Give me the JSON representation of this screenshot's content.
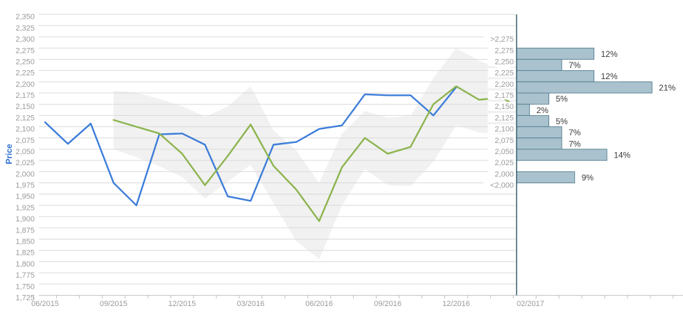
{
  "chart_data": [
    {
      "type": "line",
      "title": "",
      "ylabel": "Price",
      "ylim": [
        1725,
        2350
      ],
      "y_tick_step": 25,
      "grid": true,
      "legend": "none",
      "months": [
        "06/2015",
        "07/2015",
        "08/2015",
        "09/2015",
        "10/2015",
        "11/2015",
        "12/2015",
        "01/2016",
        "02/2016",
        "03/2016",
        "04/2016",
        "05/2016",
        "06/2016",
        "07/2016",
        "08/2016",
        "09/2016",
        "10/2016",
        "11/2016",
        "12/2016",
        "01/2017",
        "02/2017"
      ],
      "x_tick_labels": [
        "06/2015",
        "09/2015",
        "12/2015",
        "03/2016",
        "06/2016",
        "09/2016",
        "12/2016"
      ],
      "series": [
        {
          "name": "price-history",
          "color": "#3c7dd9",
          "start_month": "06/2015",
          "ends_at_edge": false,
          "values": [
            2110,
            2062,
            2107,
            1975,
            1925,
            2083,
            2085,
            2060,
            1945,
            1935,
            2060,
            2066,
            2095,
            2103,
            2172,
            2170,
            2170,
            2125,
            2188
          ]
        },
        {
          "name": "price-forecast",
          "color": "#8cb44e",
          "start_month": "09/2015",
          "ends_at_edge": true,
          "values": [
            2115,
            2100,
            2085,
            2040,
            1970,
            2035,
            2105,
            2013,
            1960,
            1890,
            2010,
            2075,
            2040,
            2055,
            2150,
            2190,
            2160,
            2165,
            2145
          ]
        }
      ],
      "band": {
        "name": "forecast-uncertainty-band",
        "color": "#f1f1f1",
        "start_month": "09/2015",
        "ends_at_edge": true,
        "top": [
          2180,
          2176,
          2162,
          2146,
          2122,
          2145,
          2190,
          2092,
          2047,
          1975,
          2085,
          2135,
          2120,
          2124,
          2208,
          2275,
          2247,
          2228,
          2235
        ],
        "bottom": [
          2050,
          2032,
          2012,
          1988,
          1940,
          1978,
          2015,
          1930,
          1845,
          1805,
          1925,
          2006,
          1970,
          1968,
          2022,
          2103,
          2087,
          2083,
          2085
        ]
      },
      "grid_color": "#d9d9d9",
      "axis_color": "#c6c6c6",
      "tick_color": "#bdbdbd",
      "tick_label_color": "#9a9a9a",
      "ylabel_color": "#2e6fd0"
    },
    {
      "type": "bar",
      "orientation": "horizontal",
      "x_label": "02/2017",
      "bin_labels": [
        {
          "text": ">2,275",
          "at": 2300
        },
        {
          "text": "2,275",
          "at": 2275
        },
        {
          "text": "2,250",
          "at": 2250
        },
        {
          "text": "2,225",
          "at": 2225
        },
        {
          "text": "2,200",
          "at": 2200
        },
        {
          "text": "2,175",
          "at": 2175
        },
        {
          "text": "2,150",
          "at": 2150
        },
        {
          "text": "2,125",
          "at": 2125
        },
        {
          "text": "2,100",
          "at": 2100
        },
        {
          "text": "2,075",
          "at": 2075
        },
        {
          "text": "2,050",
          "at": 2050
        },
        {
          "text": "2,025",
          "at": 2025
        },
        {
          "text": "2,000",
          "at": 2000
        },
        {
          "text": "<2,000",
          "at": 1975
        }
      ],
      "bars": [
        {
          "bin_top": 2275,
          "pct": 12
        },
        {
          "bin_top": 2250,
          "pct": 7
        },
        {
          "bin_top": 2225,
          "pct": 12
        },
        {
          "bin_top": 2200,
          "pct": 21
        },
        {
          "bin_top": 2175,
          "pct": 5
        },
        {
          "bin_top": 2150,
          "pct": 2
        },
        {
          "bin_top": 2125,
          "pct": 5
        },
        {
          "bin_top": 2100,
          "pct": 7
        },
        {
          "bin_top": 2075,
          "pct": 7
        },
        {
          "bin_top": 2050,
          "pct": 14
        },
        {
          "bin_top": 2000,
          "pct": 9
        }
      ],
      "bar_fill": "#a9c2ce",
      "bar_border": "#5d8294",
      "separator_color": "#355f6d",
      "value_label_color": "#3a3a3a"
    }
  ]
}
